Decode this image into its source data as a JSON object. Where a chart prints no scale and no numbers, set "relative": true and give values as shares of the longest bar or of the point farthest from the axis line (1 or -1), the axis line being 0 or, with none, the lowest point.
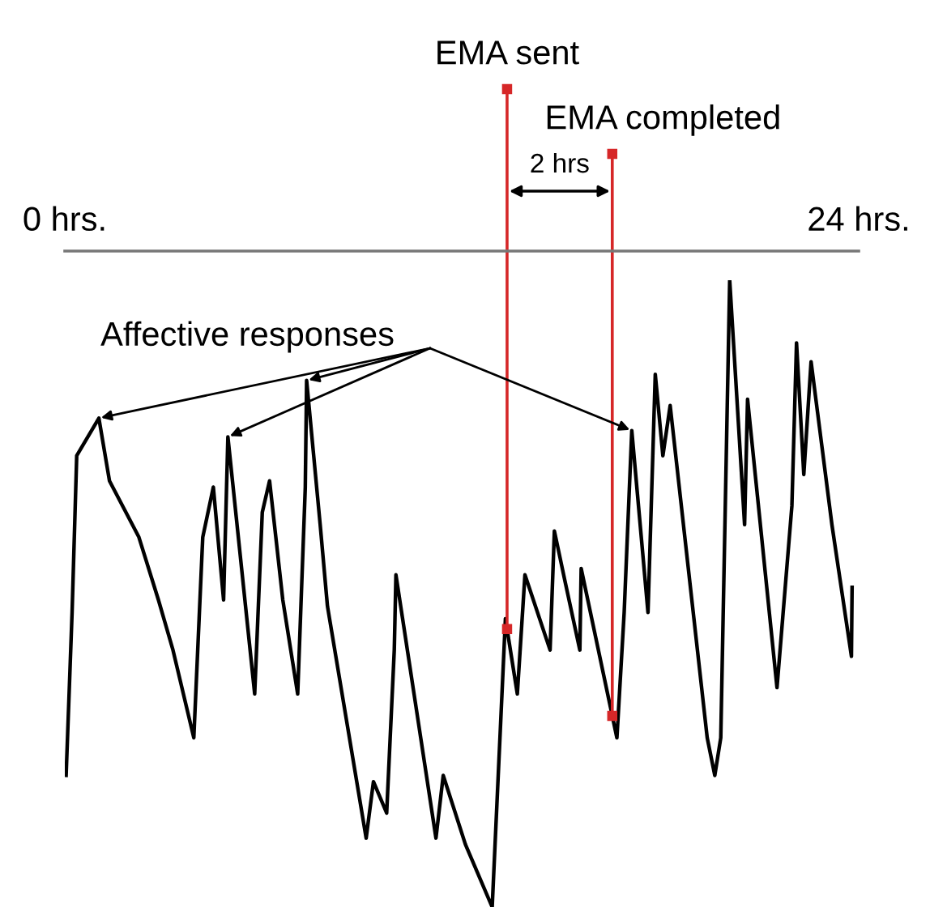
{
  "chart_data": {
    "type": "line",
    "relative": true,
    "x": [
      0.04,
      0.22,
      0.36,
      1.03,
      1.35,
      2.24,
      2.83,
      3.27,
      3.9,
      4.17,
      4.49,
      4.8,
      4.93,
      5.74,
      5.97,
      6.19,
      6.59,
      7.04,
      7.27,
      7.31,
      7.72,
      7.94,
      9.11,
      9.33,
      9.73,
      9.96,
      10.01,
      11.22,
      11.44,
      12.11,
      12.92,
      13.32,
      13.68,
      13.91,
      14.67,
      14.8,
      15.12,
      15.57,
      15.61,
      16.69,
      16.91,
      17.14,
      17.63,
      17.85,
      18.08,
      18.3,
      19.42,
      19.65,
      19.83,
      20.1,
      20.55,
      20.64,
      21.53,
      21.98,
      22.12,
      22.34,
      22.56,
      23.19,
      23.78,
      23.8
    ],
    "series": [
      {
        "color": "#000000",
        "values": [
          0.21,
          0.47,
          0.72,
          0.78,
          0.68,
          0.59,
          0.49,
          0.41,
          0.27,
          0.59,
          0.67,
          0.49,
          0.75,
          0.34,
          0.63,
          0.68,
          0.49,
          0.34,
          0.67,
          0.84,
          0.61,
          0.48,
          0.11,
          0.2,
          0.15,
          0.41,
          0.53,
          0.11,
          0.21,
          0.1,
          0.0,
          0.46,
          0.34,
          0.53,
          0.41,
          0.6,
          0.52,
          0.41,
          0.54,
          0.27,
          0.47,
          0.76,
          0.47,
          0.85,
          0.72,
          0.8,
          0.27,
          0.21,
          0.27,
          1.0,
          0.61,
          0.81,
          0.35,
          0.64,
          0.9,
          0.69,
          0.87,
          0.61,
          0.4,
          0.51
        ]
      }
    ],
    "xlim": [
      0,
      24
    ],
    "xticks": [
      {
        "value": 0,
        "label": "0 hrs."
      },
      {
        "value": 24,
        "label": "24 hrs."
      }
    ],
    "tick_labels": "x",
    "grid": false,
    "legend": false,
    "marker": "none",
    "line_style": "solid",
    "ref_lines": [
      {
        "axis": "x",
        "value": 13.37,
        "label": "EMA sent",
        "color": "#d62728"
      },
      {
        "axis": "x",
        "value": 16.55,
        "label": "EMA completed",
        "color": "#d62728"
      }
    ],
    "annotations": [
      "2 hrs",
      {
        "text": "Affective responses",
        "x": 1.03,
        "y": 0.78
      }
    ]
  }
}
